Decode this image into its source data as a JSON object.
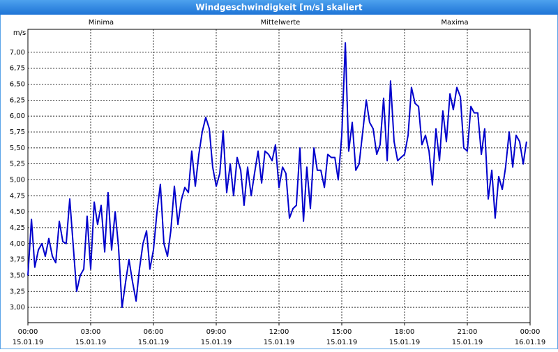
{
  "chart_data": {
    "type": "line",
    "title": "Windgeschwindigkeit [m/s] skaliert",
    "y_label": "m/s",
    "labels": [
      {
        "text": "Minima",
        "color": "#00b000"
      },
      {
        "text": "Maxima",
        "color": "#c00000"
      }
    ],
    "xlim": [
      0,
      24
    ],
    "ylim": [
      2.76,
      7.36
    ],
    "xticks": [
      {
        "value": 0,
        "label": "00:00",
        "date": "15.01.19"
      },
      {
        "value": 3,
        "label": "03:00",
        "date": "15.01.19"
      },
      {
        "value": 6,
        "label": "06:00",
        "date": "15.01.19"
      },
      {
        "value": 9,
        "label": "09:00",
        "date": "15.01.19"
      },
      {
        "value": 12,
        "label": "12:00",
        "date": "15.01.19"
      },
      {
        "value": 15,
        "label": "15:00",
        "date": "15.01.19"
      },
      {
        "value": 18,
        "label": "18:00",
        "date": "15.01.19"
      },
      {
        "value": 21,
        "label": "21:00",
        "date": "15.01.19"
      },
      {
        "value": 24,
        "label": "00:00",
        "date": "16.01.19"
      }
    ],
    "yticks": [
      {
        "value": 3,
        "label": "3,00"
      },
      {
        "value": 3.25,
        "label": "3,25"
      },
      {
        "value": 3.5,
        "label": "3,50"
      },
      {
        "value": 3.75,
        "label": "3,75"
      },
      {
        "value": 4,
        "label": "4,00"
      },
      {
        "value": 4.25,
        "label": "4,25"
      },
      {
        "value": 4.5,
        "label": "4,50"
      },
      {
        "value": 4.75,
        "label": "4,75"
      },
      {
        "value": 5,
        "label": "5,00"
      },
      {
        "value": 5.25,
        "label": "5,25"
      },
      {
        "value": 5.5,
        "label": "5,50"
      },
      {
        "value": 5.75,
        "label": "5,75"
      },
      {
        "value": 6,
        "label": "6,00"
      },
      {
        "value": 6.25,
        "label": "6,25"
      },
      {
        "value": 6.5,
        "label": "6,50"
      },
      {
        "value": 6.75,
        "label": "6,75"
      },
      {
        "value": 7,
        "label": "7,00"
      }
    ],
    "grid": true,
    "x": [
      0,
      0.17,
      0.33,
      0.5,
      0.67,
      0.83,
      1,
      1.17,
      1.33,
      1.5,
      1.67,
      1.83,
      2,
      2.17,
      2.33,
      2.5,
      2.67,
      2.83,
      3,
      3.17,
      3.33,
      3.5,
      3.67,
      3.83,
      4,
      4.17,
      4.33,
      4.5,
      4.67,
      4.83,
      5,
      5.17,
      5.33,
      5.5,
      5.67,
      5.83,
      6,
      6.17,
      6.33,
      6.5,
      6.67,
      6.83,
      7,
      7.17,
      7.33,
      7.5,
      7.67,
      7.83,
      8,
      8.17,
      8.33,
      8.5,
      8.67,
      8.83,
      9,
      9.17,
      9.33,
      9.5,
      9.67,
      9.83,
      10,
      10.17,
      10.33,
      10.5,
      10.67,
      10.83,
      11,
      11.17,
      11.33,
      11.5,
      11.67,
      11.83,
      12,
      12.17,
      12.33,
      12.5,
      12.67,
      12.83,
      13,
      13.17,
      13.33,
      13.5,
      13.67,
      13.83,
      14,
      14.17,
      14.33,
      14.5,
      14.67,
      14.83,
      15,
      15.17,
      15.33,
      15.5,
      15.67,
      15.83,
      16,
      16.17,
      16.33,
      16.5,
      16.67,
      16.83,
      17,
      17.17,
      17.33,
      17.5,
      17.67,
      17.83,
      18,
      18.17,
      18.33,
      18.5,
      18.67,
      18.83,
      19,
      19.17,
      19.33,
      19.5,
      19.67,
      19.83,
      20,
      20.17,
      20.33,
      20.5,
      20.67,
      20.83,
      21,
      21.17,
      21.33,
      21.5,
      21.67,
      21.83,
      22,
      22.17,
      22.33,
      22.5,
      22.67,
      22.83,
      23,
      23.17,
      23.33,
      23.5,
      23.67,
      23.83
    ],
    "series": [
      {
        "name": "Mittelwerte",
        "color": "#0000cc",
        "values": [
          3.5,
          4.38,
          3.63,
          3.9,
          4.0,
          3.8,
          4.08,
          3.8,
          3.7,
          4.35,
          4.03,
          4.0,
          4.7,
          3.95,
          3.25,
          3.5,
          3.6,
          4.43,
          3.6,
          4.65,
          4.3,
          4.6,
          3.87,
          4.8,
          3.9,
          4.5,
          3.95,
          3.0,
          3.4,
          3.75,
          3.4,
          3.1,
          3.6,
          4.0,
          4.2,
          3.6,
          3.9,
          4.5,
          4.93,
          4.0,
          3.8,
          4.2,
          4.9,
          4.3,
          4.68,
          4.88,
          4.8,
          5.45,
          4.9,
          5.4,
          5.75,
          5.98,
          5.8,
          5.2,
          4.9,
          5.1,
          5.77,
          4.8,
          5.25,
          4.75,
          5.35,
          5.15,
          4.6,
          5.2,
          4.75,
          5.1,
          5.45,
          4.95,
          5.45,
          5.4,
          5.3,
          5.55,
          4.88,
          5.2,
          5.1,
          4.4,
          4.55,
          4.6,
          5.5,
          4.35,
          5.2,
          4.55,
          5.5,
          5.15,
          5.15,
          4.88,
          5.4,
          5.35,
          5.35,
          5.0,
          5.7,
          7.15,
          5.45,
          5.9,
          5.15,
          5.25,
          5.75,
          6.25,
          5.9,
          5.8,
          5.4,
          5.55,
          6.28,
          5.3,
          6.55,
          5.6,
          5.3,
          5.35,
          5.4,
          5.7,
          6.45,
          6.2,
          6.15,
          5.55,
          5.7,
          5.45,
          4.92,
          5.8,
          5.3,
          6.08,
          5.6,
          6.35,
          6.1,
          6.45,
          6.3,
          5.5,
          5.45,
          6.15,
          6.05,
          6.05,
          5.4,
          5.8,
          4.7,
          5.15,
          4.4,
          5.05,
          4.85,
          5.2,
          5.75,
          5.2,
          5.7,
          5.6,
          5.25,
          5.6
        ]
      }
    ]
  }
}
